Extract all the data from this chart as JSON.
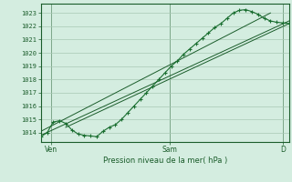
{
  "bg_color": "#d4ede0",
  "grid_color": "#a8c8b4",
  "line_color": "#1a5c2a",
  "line_color2": "#1a6e30",
  "ylabel_values": [
    1014,
    1015,
    1016,
    1017,
    1018,
    1019,
    1020,
    1021,
    1022,
    1023
  ],
  "ylim": [
    1013.3,
    1023.7
  ],
  "xlim": [
    0,
    1.0
  ],
  "xlabel": "Pression niveau de la mer( hPa )",
  "x_ticks_labels": [
    "Ven",
    "Sam",
    "D"
  ],
  "x_ticks_pos": [
    0.04,
    0.52,
    0.975
  ],
  "main_series_x": [
    0.0,
    0.025,
    0.05,
    0.075,
    0.1,
    0.125,
    0.15,
    0.175,
    0.2,
    0.225,
    0.25,
    0.275,
    0.3,
    0.325,
    0.35,
    0.375,
    0.4,
    0.425,
    0.45,
    0.475,
    0.5,
    0.525,
    0.55,
    0.575,
    0.6,
    0.625,
    0.65,
    0.675,
    0.7,
    0.725,
    0.75,
    0.775,
    0.8,
    0.825,
    0.85,
    0.875,
    0.9,
    0.925,
    0.95,
    0.975,
    1.0
  ],
  "main_series_y": [
    1013.7,
    1014.0,
    1014.8,
    1014.9,
    1014.7,
    1014.2,
    1013.9,
    1013.8,
    1013.75,
    1013.7,
    1014.1,
    1014.4,
    1014.6,
    1015.0,
    1015.5,
    1016.0,
    1016.5,
    1017.0,
    1017.5,
    1018.0,
    1018.5,
    1019.0,
    1019.4,
    1019.9,
    1020.3,
    1020.7,
    1021.1,
    1021.5,
    1021.9,
    1022.2,
    1022.6,
    1023.0,
    1023.2,
    1023.25,
    1023.1,
    1022.9,
    1022.6,
    1022.4,
    1022.3,
    1022.25,
    1022.2
  ],
  "trend_line1_x": [
    0.0,
    1.0
  ],
  "trend_line1_y": [
    1013.8,
    1022.4
  ],
  "trend_line2_x": [
    0.1,
    1.0
  ],
  "trend_line2_y": [
    1014.4,
    1022.2
  ],
  "trend_line3_x": [
    0.0,
    0.925
  ],
  "trend_line3_y": [
    1014.1,
    1023.0
  ]
}
